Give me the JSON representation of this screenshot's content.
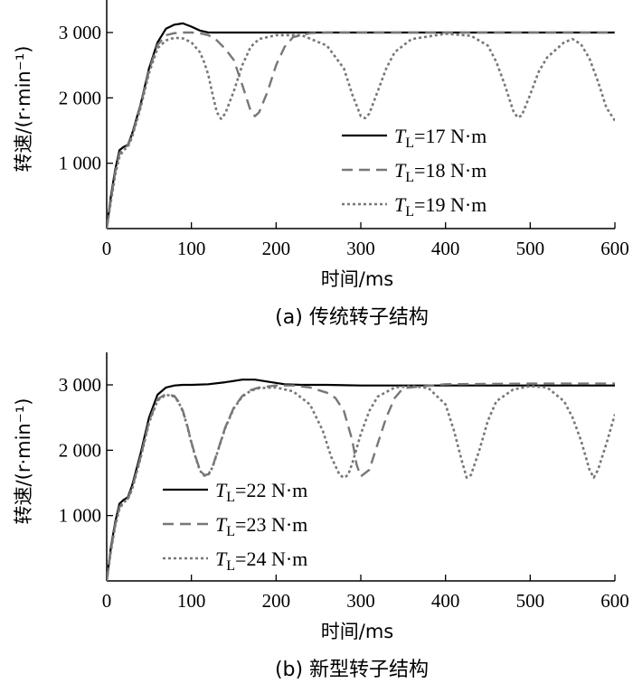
{
  "chart_data": [
    {
      "type": "line",
      "caption": "(a)  传统转子结构",
      "xlabel": "时间/ms",
      "ylabel": "转速/(r·min⁻¹)",
      "xlim": [
        0,
        600
      ],
      "ylim": [
        0,
        3500
      ],
      "xticks": [
        "0",
        "100",
        "200",
        "300",
        "400",
        "500",
        "600"
      ],
      "yticks": [
        "1 000",
        "2 000",
        "3 000"
      ],
      "legend_position": "lower-right",
      "series": [
        {
          "name": "TL=17 N·m",
          "label_prefix": "T",
          "label_sub": "L",
          "label_value": "=17 N·m",
          "style": "solid",
          "color": "#000000",
          "x": [
            0,
            5,
            10,
            15,
            20,
            25,
            30,
            40,
            50,
            60,
            70,
            80,
            90,
            100,
            110,
            120,
            150,
            200,
            300,
            400,
            500,
            600
          ],
          "y": [
            0,
            500,
            900,
            1200,
            1250,
            1280,
            1450,
            1900,
            2450,
            2850,
            3060,
            3120,
            3140,
            3090,
            3030,
            3000,
            3000,
            3000,
            3000,
            3000,
            3000,
            3000
          ]
        },
        {
          "name": "TL=18 N·m",
          "label_prefix": "T",
          "label_sub": "L",
          "label_value": "=18 N·m",
          "style": "dashed",
          "color": "#777777",
          "x": [
            0,
            5,
            10,
            15,
            20,
            25,
            30,
            40,
            50,
            60,
            70,
            80,
            90,
            100,
            110,
            120,
            130,
            140,
            150,
            160,
            170,
            175,
            180,
            190,
            200,
            210,
            220,
            240,
            260,
            300,
            400,
            500,
            600
          ],
          "y": [
            0,
            450,
            860,
            1150,
            1230,
            1270,
            1420,
            1880,
            2420,
            2810,
            2960,
            2990,
            3000,
            3000,
            2990,
            2960,
            2880,
            2750,
            2580,
            2200,
            1800,
            1720,
            1780,
            2100,
            2500,
            2780,
            2930,
            2990,
            3000,
            3000,
            3000,
            3000,
            3000
          ]
        },
        {
          "name": "TL=19 N·m",
          "label_prefix": "T",
          "label_sub": "L",
          "label_value": "=19 N·m",
          "style": "dotted",
          "color": "#777777",
          "x": [
            0,
            5,
            10,
            15,
            20,
            25,
            30,
            40,
            50,
            60,
            70,
            80,
            90,
            100,
            110,
            115,
            120,
            125,
            130,
            135,
            140,
            150,
            160,
            170,
            180,
            200,
            230,
            260,
            280,
            290,
            300,
            305,
            310,
            320,
            330,
            340,
            360,
            400,
            430,
            450,
            460,
            470,
            480,
            485,
            490,
            500,
            510,
            520,
            540,
            550,
            560,
            570,
            580,
            590,
            600
          ],
          "y": [
            0,
            420,
            820,
            1100,
            1200,
            1250,
            1400,
            1850,
            2380,
            2760,
            2880,
            2920,
            2910,
            2850,
            2700,
            2550,
            2350,
            2050,
            1780,
            1680,
            1760,
            2100,
            2500,
            2780,
            2900,
            2960,
            2960,
            2800,
            2450,
            2050,
            1720,
            1690,
            1760,
            2100,
            2450,
            2700,
            2900,
            2980,
            2950,
            2800,
            2550,
            2200,
            1800,
            1700,
            1730,
            2050,
            2400,
            2620,
            2850,
            2900,
            2820,
            2600,
            2250,
            1850,
            1650
          ]
        }
      ]
    },
    {
      "type": "line",
      "caption": "(b)  新型转子结构",
      "xlabel": "时间/ms",
      "ylabel": "转速/(r·min⁻¹)",
      "xlim": [
        0,
        600
      ],
      "ylim": [
        0,
        3500
      ],
      "xticks": [
        "0",
        "100",
        "200",
        "300",
        "400",
        "500",
        "600"
      ],
      "yticks": [
        "1 000",
        "2 000",
        "3 000"
      ],
      "legend_position": "lower-left",
      "series": [
        {
          "name": "TL=22 N·m",
          "label_prefix": "T",
          "label_sub": "L",
          "label_value": "=22 N·m",
          "style": "solid",
          "color": "#000000",
          "x": [
            0,
            5,
            10,
            15,
            20,
            25,
            30,
            40,
            50,
            60,
            70,
            80,
            90,
            100,
            120,
            140,
            160,
            175,
            190,
            210,
            230,
            260,
            300,
            400,
            500,
            600
          ],
          "y": [
            0,
            520,
            900,
            1180,
            1240,
            1280,
            1460,
            1950,
            2500,
            2850,
            2960,
            2990,
            3000,
            3000,
            3010,
            3040,
            3080,
            3080,
            3050,
            3010,
            3000,
            3000,
            2990,
            2990,
            2990,
            2990
          ]
        },
        {
          "name": "TL=23 N·m",
          "label_prefix": "T",
          "label_sub": "L",
          "label_value": "=23 N·m",
          "style": "dashed",
          "color": "#777777",
          "x": [
            0,
            5,
            10,
            15,
            20,
            25,
            30,
            40,
            50,
            60,
            70,
            80,
            85,
            90,
            95,
            100,
            105,
            110,
            115,
            120,
            125,
            130,
            140,
            150,
            160,
            170,
            180,
            200,
            220,
            240,
            260,
            270,
            280,
            290,
            295,
            300,
            310,
            320,
            330,
            340,
            350,
            400,
            500,
            600
          ],
          "y": [
            0,
            480,
            860,
            1130,
            1220,
            1260,
            1420,
            1900,
            2440,
            2780,
            2860,
            2830,
            2740,
            2600,
            2380,
            2120,
            1900,
            1700,
            1620,
            1630,
            1750,
            1950,
            2350,
            2650,
            2830,
            2920,
            2960,
            2990,
            2990,
            2960,
            2880,
            2800,
            2600,
            2150,
            1780,
            1600,
            1700,
            2100,
            2500,
            2800,
            2950,
            3010,
            3020,
            3020
          ]
        },
        {
          "name": "TL=24 N·m",
          "label_prefix": "T",
          "label_sub": "L",
          "label_value": "=24 N·m",
          "style": "dotted",
          "color": "#777777",
          "x": [
            0,
            5,
            10,
            15,
            20,
            25,
            30,
            40,
            50,
            60,
            70,
            80,
            85,
            90,
            95,
            100,
            105,
            110,
            115,
            120,
            125,
            130,
            140,
            150,
            160,
            170,
            180,
            200,
            220,
            240,
            255,
            265,
            275,
            280,
            285,
            290,
            300,
            310,
            320,
            340,
            360,
            380,
            400,
            410,
            420,
            425,
            430,
            440,
            450,
            460,
            480,
            500,
            520,
            540,
            550,
            560,
            570,
            575,
            580,
            590,
            600
          ],
          "y": [
            0,
            460,
            840,
            1100,
            1200,
            1250,
            1400,
            1880,
            2420,
            2760,
            2850,
            2820,
            2730,
            2590,
            2370,
            2110,
            1890,
            1690,
            1610,
            1620,
            1740,
            1940,
            2340,
            2640,
            2820,
            2910,
            2950,
            2960,
            2900,
            2700,
            2300,
            1900,
            1620,
            1580,
            1620,
            1800,
            2250,
            2600,
            2820,
            2960,
            2980,
            2950,
            2700,
            2300,
            1800,
            1580,
            1620,
            2000,
            2450,
            2750,
            2930,
            2980,
            2960,
            2750,
            2500,
            2150,
            1700,
            1580,
            1700,
            2100,
            2550
          ]
        }
      ]
    }
  ]
}
